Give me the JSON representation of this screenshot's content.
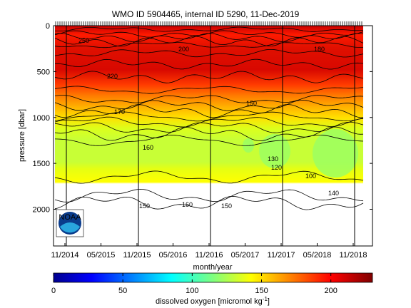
{
  "chart_data": {
    "type": "heatmap",
    "title": "WMO ID 5904465, internal ID 5290, 11-Dec-2019",
    "xlabel": "month/year",
    "ylabel": "pressure [dbar]",
    "x_ticks": [
      "11/2014",
      "05/2015",
      "11/2015",
      "05/2016",
      "11/2016",
      "05/2017",
      "11/2017",
      "05/2018",
      "11/2018"
    ],
    "y_ticks": [
      "0",
      "500",
      "1000",
      "1500",
      "2000"
    ],
    "ylim": [
      2400,
      0
    ],
    "y_reversed": true,
    "colorbar": {
      "label_main": "dissolved oxygen [micromol kg",
      "label_sup": "-1",
      "label_end": "]",
      "range": [
        0,
        230
      ],
      "ticks": [
        "0",
        "50",
        "100",
        "150",
        "200"
      ],
      "colormap": "jet"
    },
    "profile_year_lines": [
      "2015",
      "2016",
      "2017",
      "2018",
      "2019"
    ],
    "contour_labels": [
      "250",
      "220",
      "200",
      "180",
      "170",
      "160",
      "150",
      "130",
      "120",
      "100",
      "140",
      "150",
      "160",
      "150"
    ],
    "oxygen_field_summary": {
      "depth_bins_dbar": [
        0,
        100,
        300,
        600,
        900,
        1100,
        1300,
        1500,
        1800,
        2000
      ],
      "oxygen_values": [
        235,
        215,
        205,
        195,
        175,
        150,
        135,
        125,
        145,
        150
      ]
    }
  },
  "logo": {
    "name": "noaa-logo",
    "text": "NOAA"
  }
}
